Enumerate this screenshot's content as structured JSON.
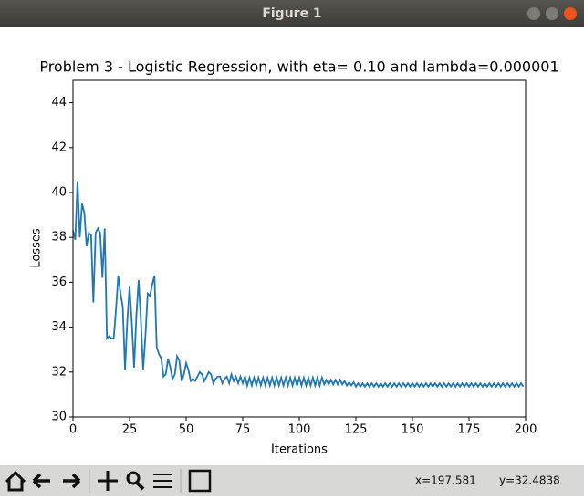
{
  "window": {
    "title": "Figure 1"
  },
  "chart_data": {
    "type": "line",
    "title": "Problem 3 - Logistic Regression, with eta= 0.10 and lambda=0.000001",
    "x_label": "Iterations",
    "y_label": "Losses",
    "color": "#1f77b4",
    "x": [
      0,
      1,
      2,
      3,
      4,
      5,
      6,
      7,
      8,
      9,
      10,
      11,
      12,
      13,
      14,
      15,
      16,
      17,
      18,
      19,
      20,
      21,
      22,
      23,
      24,
      25,
      26,
      27,
      28,
      29,
      30,
      31,
      32,
      33,
      34,
      35,
      36,
      37,
      38,
      39,
      40,
      41,
      42,
      43,
      44,
      45,
      46,
      47,
      48,
      49,
      50,
      51,
      52,
      53,
      54,
      55,
      56,
      57,
      58,
      59,
      60,
      61,
      62,
      63,
      64,
      65,
      66,
      67,
      68,
      69,
      70,
      71,
      72,
      73,
      74,
      75,
      76,
      77,
      78,
      79,
      80,
      81,
      82,
      83,
      84,
      85,
      86,
      87,
      88,
      89,
      90,
      91,
      92,
      93,
      94,
      95,
      96,
      97,
      98,
      99,
      100,
      101,
      102,
      103,
      104,
      105,
      106,
      107,
      108,
      109,
      110,
      111,
      112,
      113,
      114,
      115,
      116,
      117,
      118,
      119,
      120,
      121,
      122,
      123,
      124,
      125,
      126,
      127,
      128,
      129,
      130,
      131,
      132,
      133,
      134,
      135,
      136,
      137,
      138,
      139,
      140,
      141,
      142,
      143,
      144,
      145,
      146,
      147,
      148,
      149,
      150,
      151,
      152,
      153,
      154,
      155,
      156,
      157,
      158,
      159,
      160,
      161,
      162,
      163,
      164,
      165,
      166,
      167,
      168,
      169,
      170,
      171,
      172,
      173,
      174,
      175,
      176,
      177,
      178,
      179,
      180,
      181,
      182,
      183,
      184,
      185,
      186,
      187,
      188,
      189,
      190,
      191,
      192,
      193,
      194,
      195,
      196,
      197,
      198,
      199
    ],
    "values": [
      38.3,
      37.9,
      40.5,
      38.0,
      39.5,
      39.1,
      37.6,
      38.2,
      38.1,
      35.1,
      38.2,
      38.4,
      38.2,
      36.2,
      38.4,
      33.5,
      33.6,
      33.5,
      33.5,
      34.8,
      36.3,
      35.5,
      34.9,
      32.1,
      34.3,
      35.8,
      34.2,
      32.2,
      34.5,
      36.1,
      34.3,
      32.1,
      33.6,
      35.5,
      35.4,
      35.9,
      36.3,
      33.1,
      32.8,
      32.6,
      31.8,
      31.9,
      32.6,
      32.2,
      31.7,
      31.9,
      32.7,
      32.5,
      31.6,
      31.9,
      32.4,
      32.1,
      31.6,
      31.7,
      31.6,
      31.8,
      32.0,
      31.9,
      31.6,
      31.8,
      32.0,
      31.9,
      31.5,
      31.7,
      31.8,
      31.8,
      31.5,
      31.7,
      31.8,
      31.5,
      31.9,
      31.6,
      31.8,
      31.5,
      31.8,
      31.5,
      31.8,
      31.4,
      31.75,
      31.4,
      31.75,
      31.4,
      31.75,
      31.4,
      31.75,
      31.4,
      31.75,
      31.4,
      31.75,
      31.4,
      31.75,
      31.4,
      31.75,
      31.4,
      31.75,
      31.4,
      31.75,
      31.4,
      31.75,
      31.4,
      31.75,
      31.4,
      31.75,
      31.4,
      31.75,
      31.4,
      31.75,
      31.4,
      31.75,
      31.4,
      31.75,
      31.45,
      31.65,
      31.45,
      31.65,
      31.45,
      31.65,
      31.45,
      31.65,
      31.45,
      31.6,
      31.4,
      31.55,
      31.4,
      31.55,
      31.35,
      31.5,
      31.35,
      31.5,
      31.35,
      31.5,
      31.35,
      31.5,
      31.35,
      31.5,
      31.35,
      31.5,
      31.35,
      31.5,
      31.35,
      31.5,
      31.35,
      31.5,
      31.35,
      31.5,
      31.35,
      31.5,
      31.35,
      31.5,
      31.35,
      31.5,
      31.35,
      31.5,
      31.35,
      31.5,
      31.35,
      31.5,
      31.35,
      31.5,
      31.35,
      31.5,
      31.35,
      31.5,
      31.35,
      31.5,
      31.35,
      31.5,
      31.35,
      31.5,
      31.35,
      31.5,
      31.35,
      31.5,
      31.35,
      31.5,
      31.35,
      31.5,
      31.35,
      31.5,
      31.35,
      31.5,
      31.35,
      31.5,
      31.35,
      31.5,
      31.35,
      31.5,
      31.35,
      31.5,
      31.35,
      31.5,
      31.35,
      31.5,
      31.35,
      31.5,
      31.35,
      31.5,
      31.35,
      31.5,
      31.35
    ],
    "xlim": [
      0,
      200
    ],
    "xticks": [
      0,
      25,
      50,
      75,
      100,
      125,
      150,
      175,
      200
    ],
    "ylim": [
      30,
      45
    ],
    "yticks": [
      30,
      32,
      34,
      36,
      38,
      40,
      42,
      44
    ]
  },
  "status": {
    "x": "x=197.581",
    "y": "y=32.4838"
  }
}
